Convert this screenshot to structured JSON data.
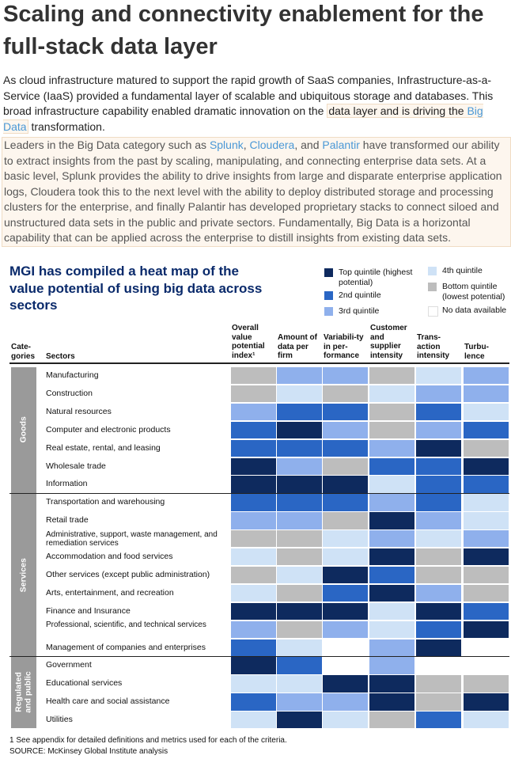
{
  "page": {
    "title": "Scaling and connectivity enablement for the full-stack data layer",
    "p1_pre": "As cloud infrastructure matured to support the rapid growth of SaaS companies, Infrastructure-as-a-Service (IaaS) provided a fundamental layer of scalable and ubiquitous storage and databases. This broad infrastructure capability enabled dramatic innovation on the ",
    "p1_hl": "data layer and is driving the ",
    "p1_link": "Big Data",
    "p1_post": " transformation.",
    "p2_a": "Leaders in the Big Data category such as ",
    "p2_splunk": "Splunk",
    "p2_b": ", ",
    "p2_cloudera": "Cloudera",
    "p2_c": ", and ",
    "p2_palantir": "Palantir",
    "p2_d": " have transformed our ability to extract insights from the past by scaling, manipulating, and connecting enterprise data sets.  At a basic level, Splunk provides the ability to drive insights from large and disparate enterprise application logs, Cloudera took this to the next level with the ability to deploy distributed storage and processing clusters for the enterprise, and finally Palantir has developed proprietary stacks to connect siloed and unstructured data sets in the public and private sectors.  Fundamentally, Big Data is a horizontal capability that can be applied across the enterprise to distill insights from existing data sets."
  },
  "figure": {
    "title": "MGI has compiled a heat map of the value potential of using big data across sectors",
    "legend": [
      {
        "label": "Top quintile (highest potential)",
        "color": "#0e2a5e"
      },
      {
        "label": "2nd quintile",
        "color": "#2a66c4"
      },
      {
        "label": "3rd quintile",
        "color": "#8fb0ec"
      },
      {
        "label": "4th quintile",
        "color": "#cfe2f6"
      },
      {
        "label": "Bottom quintile (lowest potential)",
        "color": "#bdbdbd"
      },
      {
        "label": "No data available",
        "color": "#ffffff"
      }
    ],
    "col_categories": "Cate-gories",
    "col_sectors": "Sectors",
    "columns": [
      "Overall value potential index¹",
      "Amount of data per firm",
      "Variabili-ty in per-formance",
      "Customer and supplier intensity",
      "Trans-action intensity",
      "Turbu-lence"
    ],
    "categories": [
      "Goods",
      "Services",
      "Regulated and public"
    ],
    "footnote": "1  See appendix for detailed definitions and metrics used for each of the criteria.",
    "source": "SOURCE: McKinsey Global Institute analysis"
  },
  "chart_data": {
    "type": "heatmap",
    "title": "MGI has compiled a heat map of the value potential of using big data across sectors",
    "value_scale": {
      "1": "Top quintile (highest potential)",
      "2": "2nd quintile",
      "3": "3rd quintile",
      "4": "4th quintile",
      "5": "Bottom quintile (lowest potential)",
      "0": "No data available"
    },
    "columns": [
      "Overall value potential index¹",
      "Amount of data per firm",
      "Variabili-ty in per-formance",
      "Customer and supplier intensity",
      "Trans-action intensity",
      "Turbu-lence"
    ],
    "rows": [
      {
        "category": "Goods",
        "sector": "Manufacturing",
        "values": [
          5,
          3,
          3,
          5,
          4,
          3
        ]
      },
      {
        "category": "Goods",
        "sector": "Construction",
        "values": [
          5,
          4,
          5,
          4,
          3,
          3
        ]
      },
      {
        "category": "Goods",
        "sector": "Natural resources",
        "values": [
          3,
          2,
          2,
          5,
          2,
          4
        ]
      },
      {
        "category": "Goods",
        "sector": "Computer and electronic products",
        "values": [
          2,
          1,
          3,
          5,
          3,
          2
        ]
      },
      {
        "category": "Goods",
        "sector": "Real estate, rental, and leasing",
        "values": [
          2,
          2,
          2,
          3,
          1,
          5
        ]
      },
      {
        "category": "Goods",
        "sector": "Wholesale trade",
        "values": [
          1,
          3,
          5,
          2,
          2,
          1
        ]
      },
      {
        "category": "Goods",
        "sector": "Information",
        "values": [
          1,
          1,
          1,
          4,
          2,
          2
        ]
      },
      {
        "category": "Services",
        "sector": "Transportation and warehousing",
        "values": [
          2,
          2,
          2,
          3,
          2,
          4
        ]
      },
      {
        "category": "Services",
        "sector": "Retail trade",
        "values": [
          3,
          3,
          5,
          1,
          3,
          4
        ]
      },
      {
        "category": "Services",
        "sector": "Administrative, support, waste management, and remediation services",
        "values": [
          5,
          5,
          4,
          3,
          4,
          3
        ]
      },
      {
        "category": "Services",
        "sector": "Accommodation and food services",
        "values": [
          4,
          5,
          4,
          1,
          5,
          1
        ]
      },
      {
        "category": "Services",
        "sector": "Other services (except public administration)",
        "values": [
          5,
          4,
          1,
          2,
          5,
          5
        ]
      },
      {
        "category": "Services",
        "sector": "Arts, entertainment, and recreation",
        "values": [
          4,
          5,
          2,
          1,
          3,
          5
        ]
      },
      {
        "category": "Services",
        "sector": "Finance and Insurance",
        "values": [
          1,
          1,
          1,
          4,
          1,
          2
        ]
      },
      {
        "category": "Services",
        "sector": "Professional, scientific, and technical services",
        "values": [
          3,
          5,
          3,
          4,
          2,
          1
        ]
      },
      {
        "category": "Services",
        "sector": "Management of companies and enterprises",
        "values": [
          2,
          4,
          0,
          3,
          1,
          0
        ]
      },
      {
        "category": "Regulated and public",
        "sector": "Government",
        "values": [
          1,
          2,
          0,
          3,
          0,
          0
        ]
      },
      {
        "category": "Regulated and public",
        "sector": "Educational services",
        "values": [
          4,
          4,
          1,
          1,
          5,
          5
        ]
      },
      {
        "category": "Regulated and public",
        "sector": "Health care and social assistance",
        "values": [
          2,
          3,
          3,
          1,
          5,
          1
        ]
      },
      {
        "category": "Regulated and public",
        "sector": "Utilities",
        "values": [
          4,
          1,
          4,
          5,
          2,
          4
        ]
      }
    ]
  }
}
